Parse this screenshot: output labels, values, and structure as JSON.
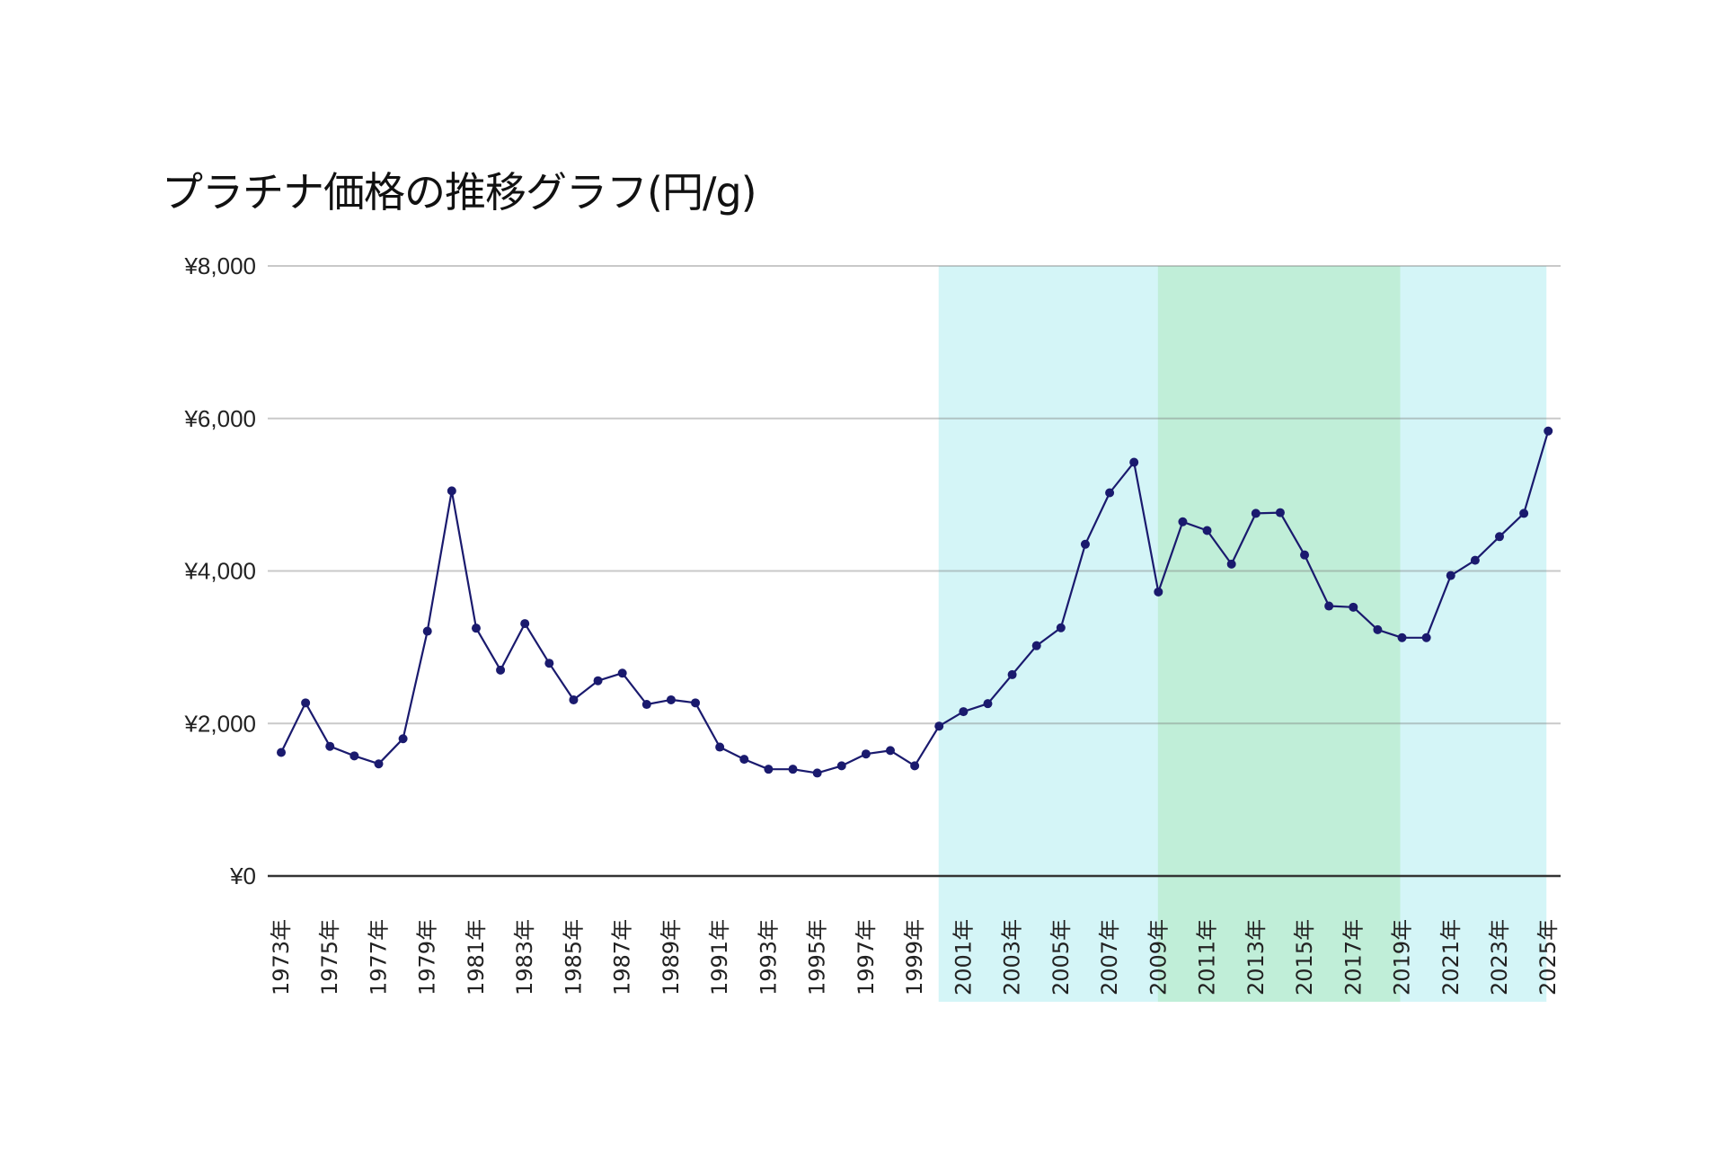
{
  "chart_data": {
    "type": "line",
    "title": "プラチナ価格の推移グラフ(円/g)",
    "xlabel": "",
    "ylabel": "",
    "ylim": [
      0,
      8000
    ],
    "yticks": [
      0,
      2000,
      4000,
      6000,
      8000
    ],
    "ytick_labels": [
      "¥0",
      "¥2,000",
      "¥4,000",
      "¥6,000",
      "¥8,000"
    ],
    "grid": true,
    "legend": null,
    "x": [
      1973,
      1974,
      1975,
      1976,
      1977,
      1978,
      1979,
      1980,
      1981,
      1982,
      1983,
      1984,
      1985,
      1986,
      1987,
      1988,
      1989,
      1990,
      1991,
      1992,
      1993,
      1994,
      1995,
      1996,
      1997,
      1998,
      1999,
      2000,
      2001,
      2002,
      2003,
      2004,
      2005,
      2006,
      2007,
      2008,
      2009,
      2010,
      2011,
      2012,
      2013,
      2014,
      2015,
      2016,
      2017,
      2018,
      2019,
      2020,
      2021,
      2022,
      2023,
      2024,
      2025
    ],
    "xtick_labels": [
      "1973年",
      "1975年",
      "1977年",
      "1979年",
      "1981年",
      "1983年",
      "1985年",
      "1987年",
      "1989年",
      "1991年",
      "1993年",
      "1995年",
      "1997年",
      "1999年",
      "2001年",
      "2003年",
      "2005年",
      "2007年",
      "2009年",
      "2011年",
      "2013年",
      "2015年",
      "2017年",
      "2019年",
      "2021年",
      "2023年",
      "2025年"
    ],
    "series": [
      {
        "name": "プラチナ価格(円/g)",
        "color": "#1a1a6e",
        "values": [
          1620,
          2270,
          1700,
          1575,
          1470,
          1800,
          3210,
          5050,
          3250,
          2700,
          3310,
          2790,
          2310,
          2560,
          2660,
          2250,
          2310,
          2270,
          1690,
          1530,
          1400,
          1400,
          1350,
          1445,
          1600,
          1645,
          1445,
          1965,
          2155,
          2260,
          2640,
          3020,
          3255,
          4350,
          5025,
          5425,
          3725,
          4645,
          4530,
          4090,
          4755,
          4765,
          4210,
          3540,
          3525,
          3230,
          3125,
          3125,
          3940,
          4140,
          4450,
          4755,
          5835
        ]
      }
    ],
    "bands": [
      {
        "from": 2000,
        "to": 2025,
        "color": "#d4f5f7"
      },
      {
        "from": 2009,
        "to": 2019,
        "color": "#c0eed8"
      }
    ]
  }
}
